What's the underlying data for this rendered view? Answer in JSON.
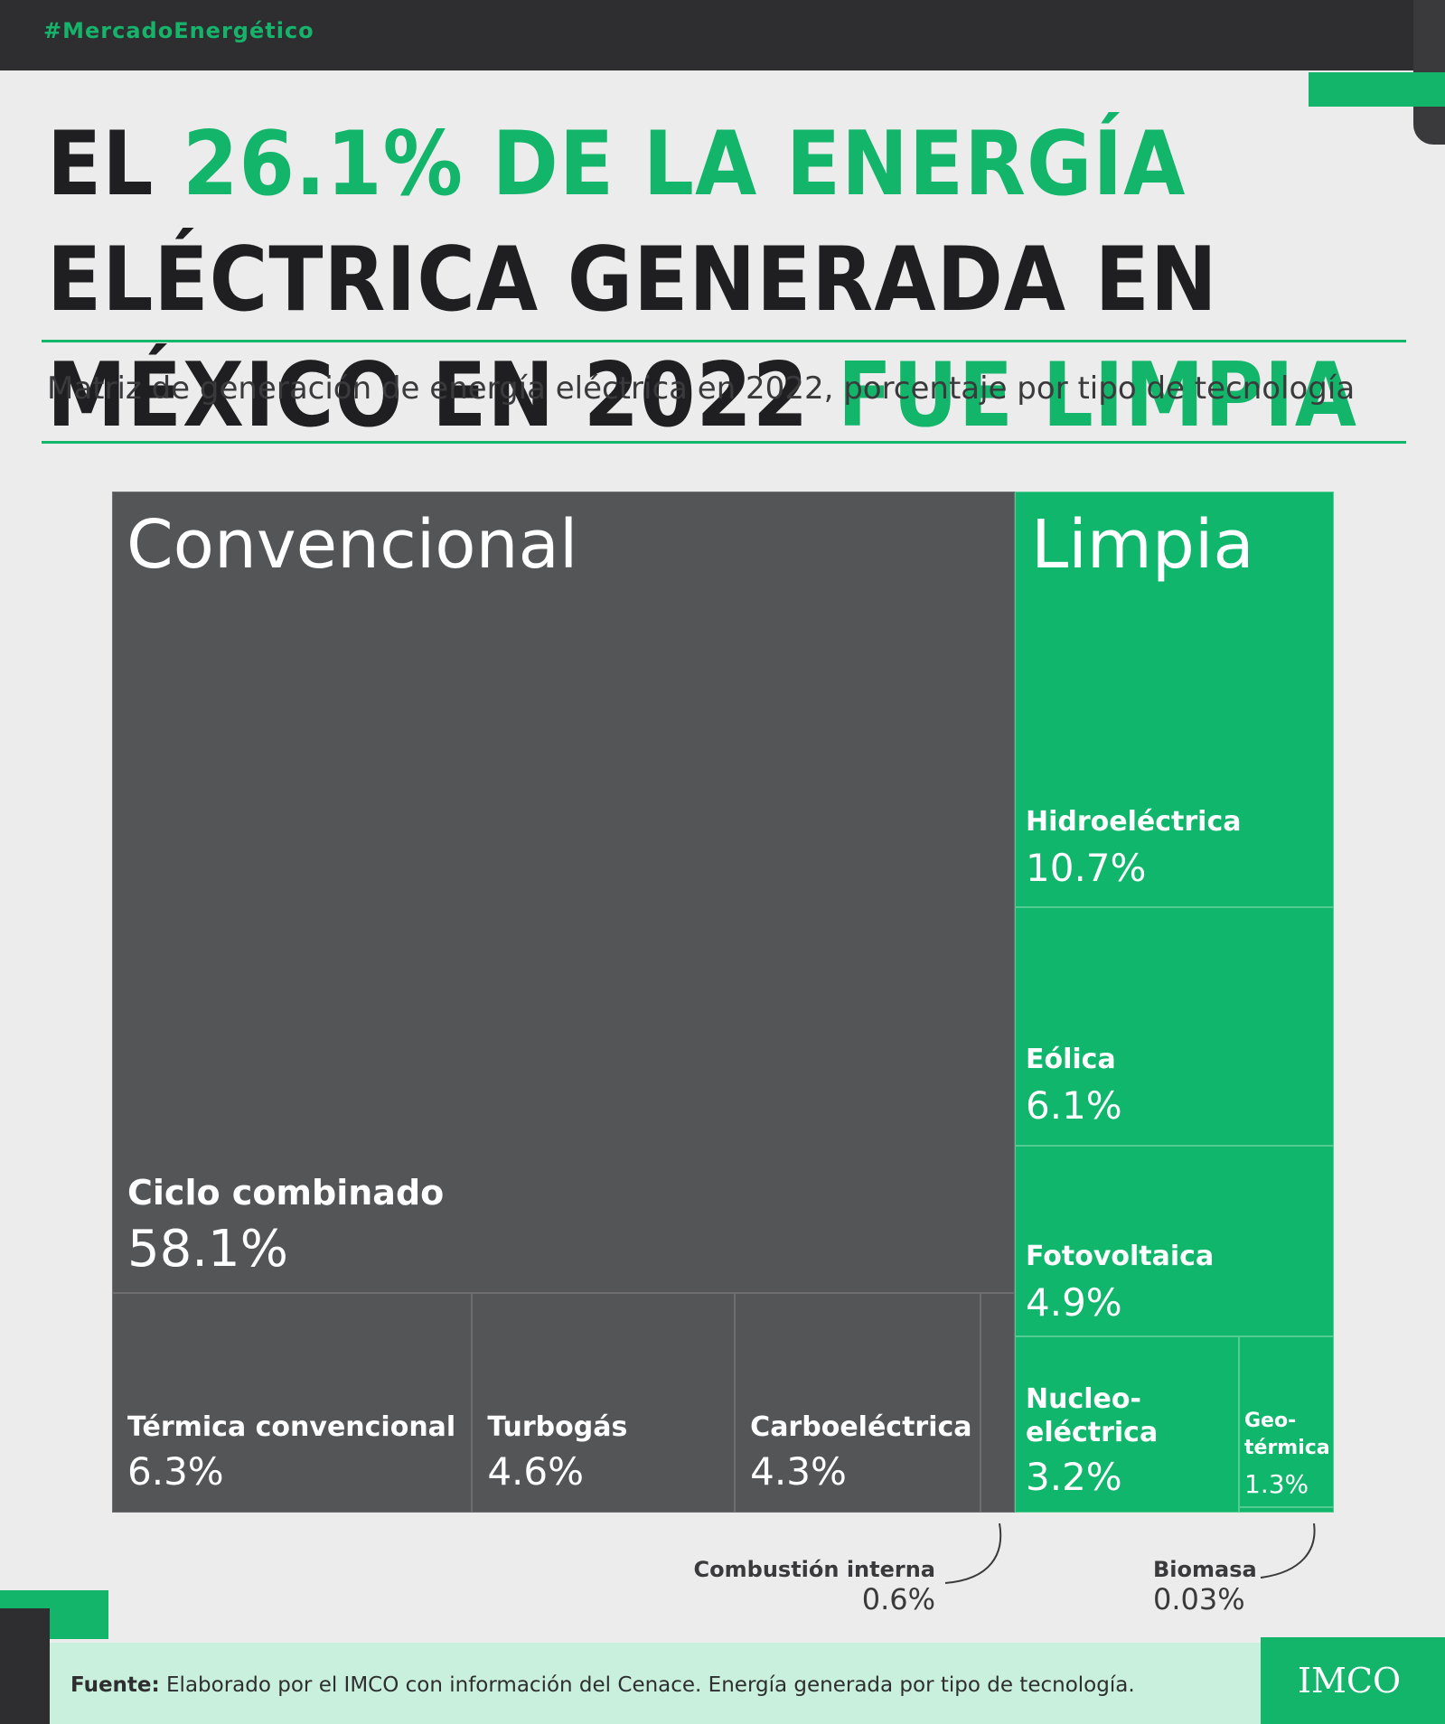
{
  "hashtag": "#MercadoEnergético",
  "title": {
    "part1": "EL ",
    "highlight1": "26.1% DE LA ENERGÍA",
    "part2": " ELÉCTRICA GENERADA EN MÉXICO EN 2022 ",
    "highlight2": "FUE LIMPIA"
  },
  "subtitle": "Matriz de generación de energía eléctrica en 2022, porcentaje por tipo de tecnología",
  "colors": {
    "convencional": "#545557",
    "limpia": "#0fb66b",
    "accent": "#12b56a"
  },
  "chart_data": {
    "type": "treemap",
    "groups": [
      {
        "name": "Convencional",
        "items": [
          {
            "name": "Ciclo combinado",
            "value_label": "58.1%",
            "value": 58.1
          },
          {
            "name": "Térmica convencional",
            "value_label": "6.3%",
            "value": 6.3
          },
          {
            "name": "Turbogás",
            "value_label": "4.6%",
            "value": 4.6
          },
          {
            "name": "Carboeléctrica",
            "value_label": "4.3%",
            "value": 4.3
          },
          {
            "name": "Combustión interna",
            "value_label": "0.6%",
            "value": 0.6
          }
        ]
      },
      {
        "name": "Limpia",
        "items": [
          {
            "name": "Hidroeléctrica",
            "value_label": "10.7%",
            "value": 10.7
          },
          {
            "name": "Eólica",
            "value_label": "6.1%",
            "value": 6.1
          },
          {
            "name": "Fotovoltaica",
            "value_label": "4.9%",
            "value": 4.9
          },
          {
            "name": "Nucleo-eléctrica",
            "display_lines": [
              "Nucleo-",
              "eléctrica"
            ],
            "value_label": "3.2%",
            "value": 3.2
          },
          {
            "name": "Geo-térmica",
            "display_lines": [
              "Geo-",
              "térmica"
            ],
            "value_label": "1.3%",
            "value": 1.3
          },
          {
            "name": "Biomasa",
            "value_label": "0.03%",
            "value": 0.03
          }
        ]
      }
    ]
  },
  "footer": {
    "source_label": "Fuente:",
    "source_text": " Elaborado por el IMCO con información del Cenace. Energía generada por tipo de tecnología.",
    "logo": "IMCO"
  }
}
